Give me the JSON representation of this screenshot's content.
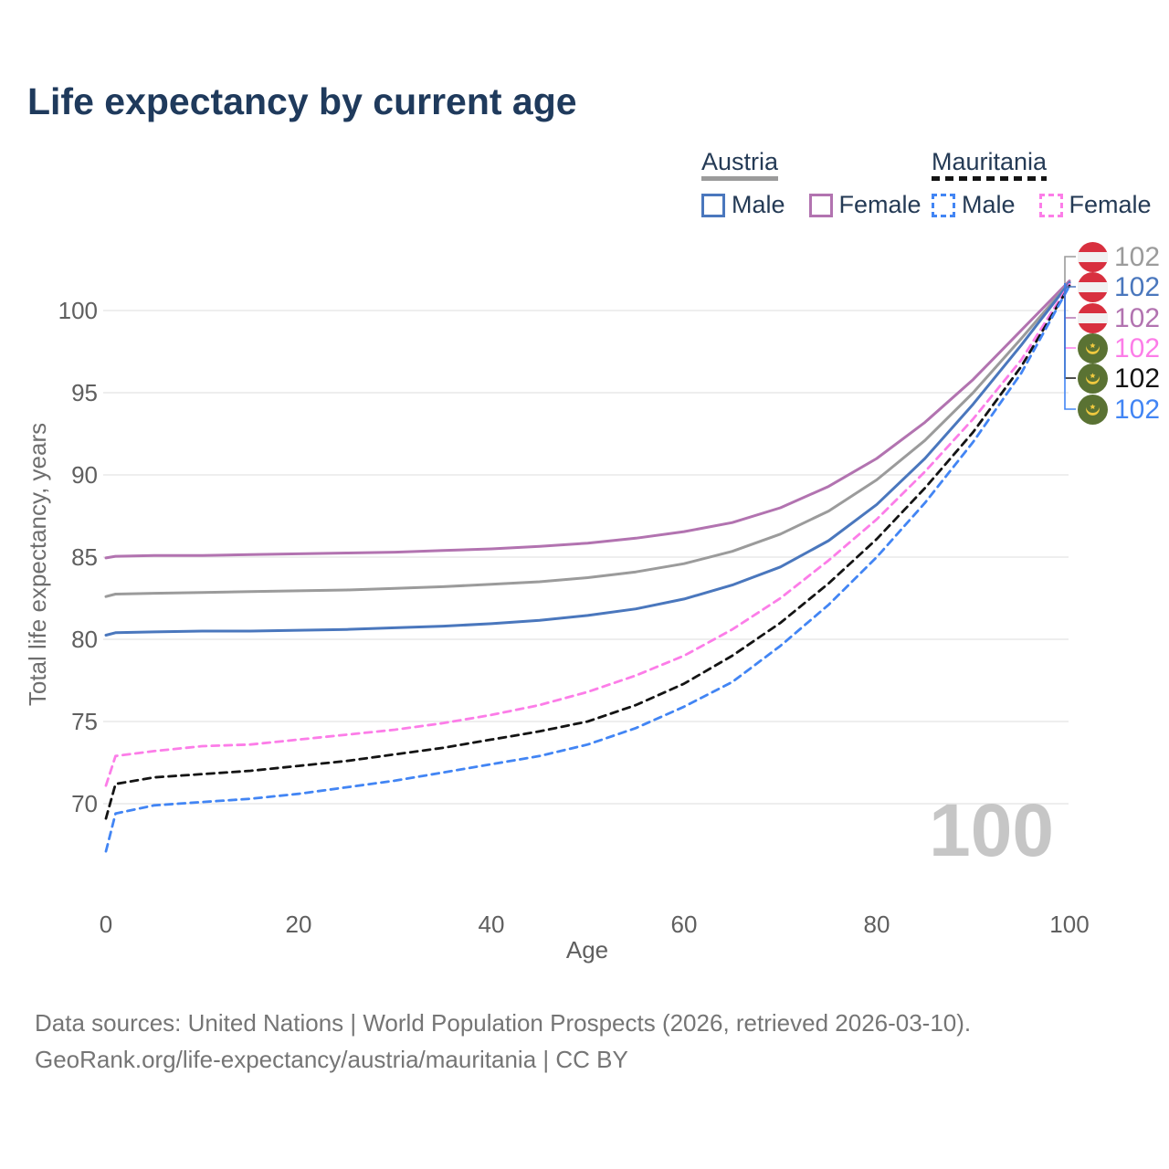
{
  "title": "Life expectancy by current age",
  "legend": {
    "groups": [
      {
        "name": "Austria",
        "line_style": "solid",
        "line_color": "#9b9b9b",
        "items": [
          {
            "label": "Male",
            "color": "#4a77bd",
            "dashed": false
          },
          {
            "label": "Female",
            "color": "#b273b0",
            "dashed": false
          }
        ]
      },
      {
        "name": "Mauritania",
        "line_style": "dashed",
        "line_color": "#141414",
        "items": [
          {
            "label": "Male",
            "color": "#4285f4",
            "dashed": true
          },
          {
            "label": "Female",
            "color": "#fc7de8",
            "dashed": true
          }
        ]
      }
    ]
  },
  "y_axis": {
    "title": "Total life expectancy, years",
    "ticks": [
      70,
      75,
      80,
      85,
      90,
      95,
      100
    ],
    "range": [
      66,
      103
    ]
  },
  "x_axis": {
    "title": "Age",
    "ticks": [
      0,
      20,
      40,
      60,
      80,
      100
    ],
    "range": [
      0,
      100
    ]
  },
  "chart_data": {
    "type": "line",
    "title": "Life expectancy by current age",
    "xlabel": "Age",
    "ylabel": "Total life expectancy, years",
    "grid": "horizontal",
    "x": [
      0,
      1,
      5,
      10,
      15,
      20,
      25,
      30,
      35,
      40,
      45,
      50,
      55,
      60,
      65,
      70,
      75,
      80,
      85,
      90,
      95,
      100
    ],
    "series": [
      {
        "name": "Austria Female",
        "country": "Austria",
        "sex": "Female",
        "color": "#b273b0",
        "dash": false,
        "values": [
          84.95,
          85.05,
          85.1,
          85.1,
          85.15,
          85.2,
          85.25,
          85.3,
          85.4,
          85.5,
          85.65,
          85.85,
          86.15,
          86.55,
          87.1,
          88.0,
          89.3,
          91.0,
          93.2,
          95.8,
          98.8,
          101.8
        ]
      },
      {
        "name": "Austria Total",
        "country": "Austria",
        "sex": "Both",
        "color": "#9b9b9b",
        "dash": false,
        "values": [
          82.6,
          82.75,
          82.8,
          82.85,
          82.9,
          82.95,
          83.0,
          83.1,
          83.2,
          83.35,
          83.5,
          83.75,
          84.1,
          84.6,
          85.35,
          86.4,
          87.8,
          89.7,
          92.1,
          95.0,
          98.3,
          101.7
        ]
      },
      {
        "name": "Austria Male",
        "country": "Austria",
        "sex": "Male",
        "color": "#4a77bd",
        "dash": false,
        "values": [
          80.25,
          80.4,
          80.45,
          80.5,
          80.5,
          80.55,
          80.6,
          80.7,
          80.8,
          80.95,
          81.15,
          81.45,
          81.85,
          82.45,
          83.3,
          84.4,
          86.0,
          88.2,
          91.0,
          94.3,
          97.9,
          101.7
        ]
      },
      {
        "name": "Mauritania Female",
        "country": "Mauritania",
        "sex": "Female",
        "color": "#fc7de8",
        "dash": true,
        "values": [
          71.1,
          72.9,
          73.2,
          73.5,
          73.6,
          73.9,
          74.2,
          74.5,
          74.9,
          75.4,
          76.0,
          76.8,
          77.8,
          79.0,
          80.6,
          82.5,
          84.8,
          87.3,
          90.2,
          93.4,
          97.0,
          101.6
        ]
      },
      {
        "name": "Mauritania Total",
        "country": "Mauritania",
        "sex": "Both",
        "color": "#141414",
        "dash": true,
        "values": [
          69.1,
          71.2,
          71.6,
          71.8,
          72.0,
          72.3,
          72.6,
          73.0,
          73.4,
          73.9,
          74.4,
          75.0,
          76.0,
          77.3,
          79.0,
          81.0,
          83.4,
          86.1,
          89.2,
          92.6,
          96.6,
          101.5
        ]
      },
      {
        "name": "Mauritania Male",
        "country": "Mauritania",
        "sex": "Male",
        "color": "#4285f4",
        "dash": true,
        "values": [
          67.1,
          69.4,
          69.9,
          70.1,
          70.3,
          70.6,
          71.0,
          71.4,
          71.9,
          72.4,
          72.9,
          73.6,
          74.6,
          75.9,
          77.4,
          79.6,
          82.1,
          85.0,
          88.3,
          92.0,
          96.2,
          101.5
        ]
      }
    ]
  },
  "end_labels": [
    {
      "value": "102",
      "flag": "austria",
      "color": "#9b9b9b"
    },
    {
      "value": "102",
      "flag": "austria",
      "color": "#4a77bd"
    },
    {
      "value": "102",
      "flag": "austria",
      "color": "#b273b0"
    },
    {
      "value": "102",
      "flag": "mauritania",
      "color": "#fc7de8"
    },
    {
      "value": "102",
      "flag": "mauritania",
      "color": "#141414"
    },
    {
      "value": "102",
      "flag": "mauritania",
      "color": "#4285f4"
    }
  ],
  "watermark": "100",
  "footer": {
    "line1": "Data sources: United Nations | World Population Prospects (2026, retrieved 2026-03-10).",
    "line2": "GeoRank.org/life-expectancy/austria/mauritania | CC BY"
  }
}
